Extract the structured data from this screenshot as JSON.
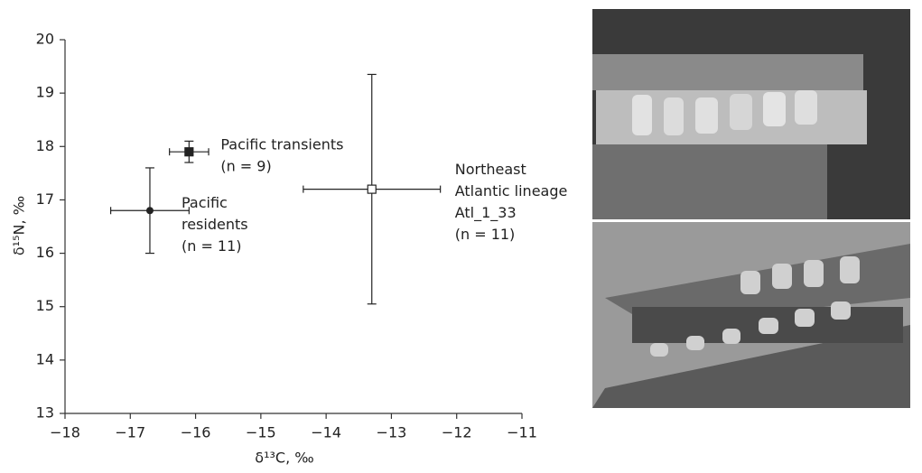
{
  "chart_data": {
    "type": "scatter",
    "x_label": "δ¹³C, ‰",
    "y_label": "δ¹⁵N, ‰",
    "xlim": [
      -18,
      -11
    ],
    "ylim": [
      13,
      20
    ],
    "xticks": [
      {
        "value": -18,
        "label": "−18"
      },
      {
        "value": -17,
        "label": "−17"
      },
      {
        "value": -16,
        "label": "−16"
      },
      {
        "value": -15,
        "label": "−15"
      },
      {
        "value": -14,
        "label": "−14"
      },
      {
        "value": -13,
        "label": "−13"
      },
      {
        "value": -12,
        "label": "−12"
      },
      {
        "value": -11,
        "label": "−11"
      }
    ],
    "yticks": [
      13,
      14,
      15,
      16,
      17,
      18,
      19,
      20
    ],
    "series": [
      {
        "label": [
          "Pacific",
          "residents"
        ],
        "n_label": "(n = 11)",
        "x": -16.7,
        "y": 16.8,
        "xerr": 0.6,
        "yerr": 0.8,
        "marker": "filled-circle",
        "color": "#222"
      },
      {
        "label": [
          "Pacific transients"
        ],
        "n_label": "(n = 9)",
        "x": -16.1,
        "y": 17.9,
        "xerr": 0.3,
        "yerr": 0.2,
        "marker": "filled-square",
        "color": "#222"
      },
      {
        "label": [
          "Northeast",
          "Atlantic lineage",
          "Atl_1_33"
        ],
        "n_label": "(n = 11)",
        "x": -13.3,
        "y": 17.2,
        "xerr": 1.05,
        "yerr": 2.15,
        "marker": "open-square",
        "color": "#222"
      }
    ]
  }
}
